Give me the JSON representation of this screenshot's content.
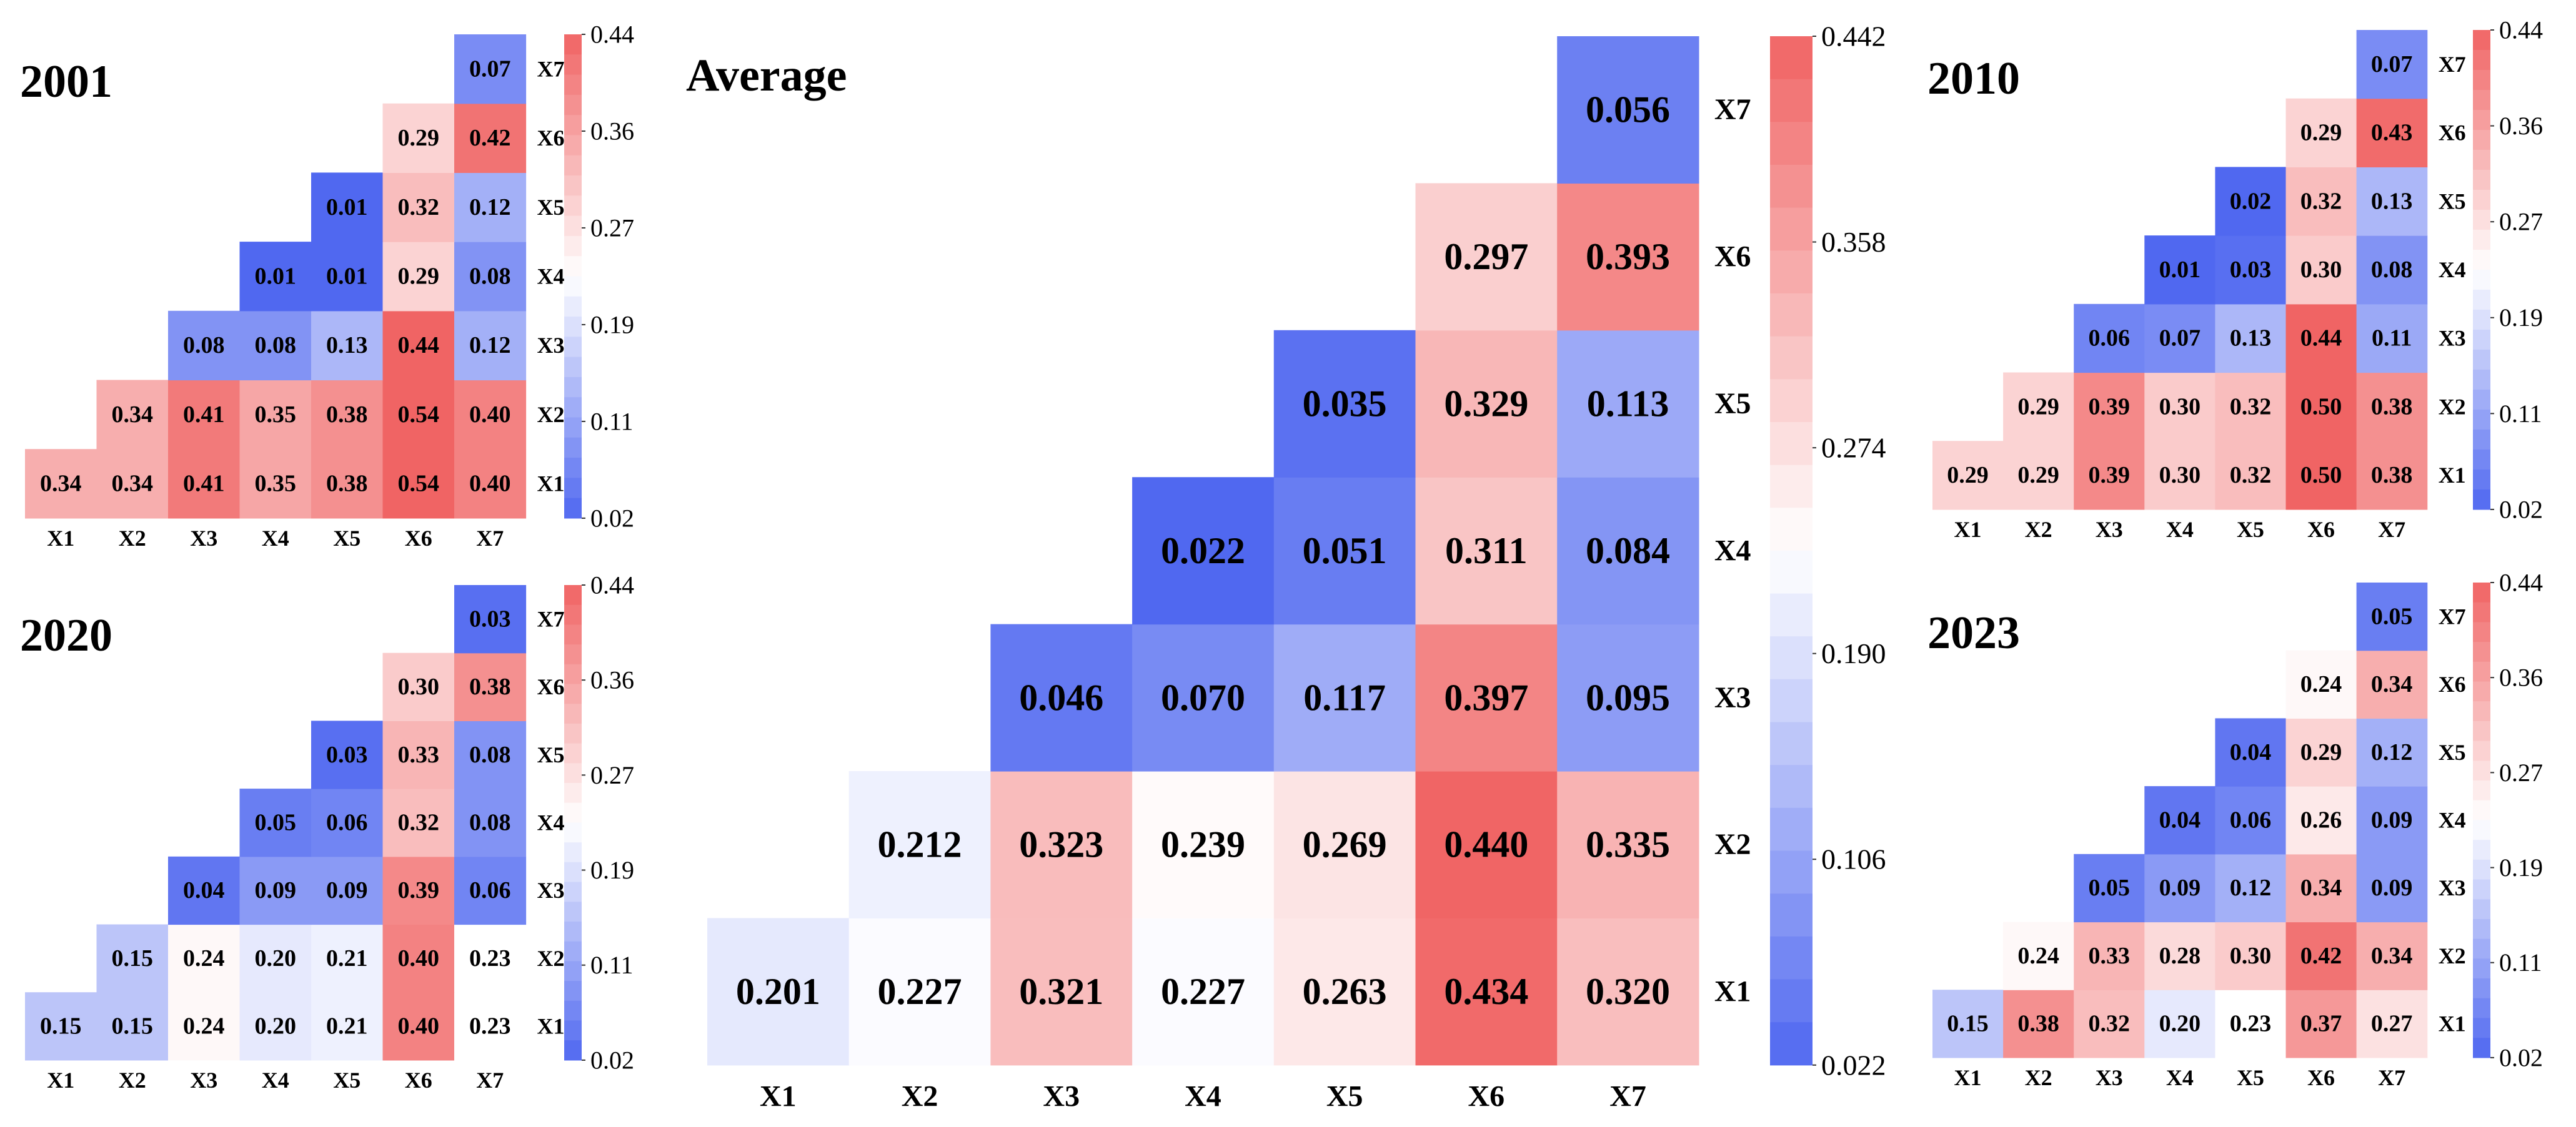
{
  "colors": {
    "low": "#5068f0",
    "mid": "#ffffff",
    "high": "#f06464",
    "text": "#000000"
  },
  "chart_data": [
    {
      "type": "heatmap",
      "title": "2001",
      "xlabels": [
        "X1",
        "X2",
        "X3",
        "X4",
        "X5",
        "X6",
        "X7"
      ],
      "ylabels": [
        "X1",
        "X2",
        "X3",
        "X4",
        "X5",
        "X6",
        "X7"
      ],
      "values": [
        [
          "0.34",
          "0.34",
          "0.41",
          "0.35",
          "0.38",
          "0.54",
          "0.40"
        ],
        [
          "",
          "0.34",
          "0.41",
          "0.35",
          "0.38",
          "0.54",
          "0.40"
        ],
        [
          "",
          "",
          "0.08",
          "0.08",
          "0.13",
          "0.44",
          "0.12"
        ],
        [
          "",
          "",
          "",
          "0.01",
          "0.01",
          "0.29",
          "0.08"
        ],
        [
          "",
          "",
          "",
          "",
          "0.01",
          "0.32",
          "0.12"
        ],
        [
          "",
          "",
          "",
          "",
          "",
          "0.29",
          "0.42"
        ],
        [
          "",
          "",
          "",
          "",
          "",
          "",
          "0.07"
        ]
      ],
      "colorbar": {
        "min": 0.02,
        "max": 0.44,
        "ticks": [
          "0.44",
          "0.36",
          "0.27",
          "0.19",
          "0.11",
          "0.02"
        ]
      }
    },
    {
      "type": "heatmap",
      "title": "2020",
      "xlabels": [
        "X1",
        "X2",
        "X3",
        "X4",
        "X5",
        "X6",
        "X7"
      ],
      "ylabels": [
        "X1",
        "X2",
        "X3",
        "X4",
        "X5",
        "X6",
        "X7"
      ],
      "values": [
        [
          "0.15",
          "0.15",
          "0.24",
          "0.20",
          "0.21",
          "0.40",
          "0.23"
        ],
        [
          "",
          "0.15",
          "0.24",
          "0.20",
          "0.21",
          "0.40",
          "0.23"
        ],
        [
          "",
          "",
          "0.04",
          "0.09",
          "0.09",
          "0.39",
          "0.06"
        ],
        [
          "",
          "",
          "",
          "0.05",
          "0.06",
          "0.32",
          "0.08"
        ],
        [
          "",
          "",
          "",
          "",
          "0.03",
          "0.33",
          "0.08"
        ],
        [
          "",
          "",
          "",
          "",
          "",
          "0.30",
          "0.38"
        ],
        [
          "",
          "",
          "",
          "",
          "",
          "",
          "0.03"
        ]
      ],
      "colorbar": {
        "min": 0.02,
        "max": 0.44,
        "ticks": [
          "0.44",
          "0.36",
          "0.27",
          "0.19",
          "0.11",
          "0.02"
        ]
      }
    },
    {
      "type": "heatmap",
      "title": "Average",
      "xlabels": [
        "X1",
        "X2",
        "X3",
        "X4",
        "X5",
        "X6",
        "X7"
      ],
      "ylabels": [
        "X1",
        "X2",
        "X3",
        "X4",
        "X5",
        "X6",
        "X7"
      ],
      "values": [
        [
          "0.201",
          "0.227",
          "0.321",
          "0.227",
          "0.263",
          "0.434",
          "0.320"
        ],
        [
          "",
          "0.212",
          "0.323",
          "0.239",
          "0.269",
          "0.440",
          "0.335"
        ],
        [
          "",
          "",
          "0.046",
          "0.070",
          "0.117",
          "0.397",
          "0.095"
        ],
        [
          "",
          "",
          "",
          "0.022",
          "0.051",
          "0.311",
          "0.084"
        ],
        [
          "",
          "",
          "",
          "",
          "0.035",
          "0.329",
          "0.113"
        ],
        [
          "",
          "",
          "",
          "",
          "",
          "0.297",
          "0.393"
        ],
        [
          "",
          "",
          "",
          "",
          "",
          "",
          "0.056"
        ]
      ],
      "colorbar": {
        "min": 0.022,
        "max": 0.442,
        "ticks": [
          "0.442",
          "0.358",
          "0.274",
          "0.190",
          "0.106",
          "0.022"
        ]
      }
    },
    {
      "type": "heatmap",
      "title": "2010",
      "xlabels": [
        "X1",
        "X2",
        "X3",
        "X4",
        "X5",
        "X6",
        "X7"
      ],
      "ylabels": [
        "X1",
        "X2",
        "X3",
        "X4",
        "X5",
        "X6",
        "X7"
      ],
      "values": [
        [
          "0.29",
          "0.29",
          "0.39",
          "0.30",
          "0.32",
          "0.50",
          "0.38"
        ],
        [
          "",
          "0.29",
          "0.39",
          "0.30",
          "0.32",
          "0.50",
          "0.38"
        ],
        [
          "",
          "",
          "0.06",
          "0.07",
          "0.13",
          "0.44",
          "0.11"
        ],
        [
          "",
          "",
          "",
          "0.01",
          "0.03",
          "0.30",
          "0.08"
        ],
        [
          "",
          "",
          "",
          "",
          "0.02",
          "0.32",
          "0.13"
        ],
        [
          "",
          "",
          "",
          "",
          "",
          "0.29",
          "0.43"
        ],
        [
          "",
          "",
          "",
          "",
          "",
          "",
          "0.07"
        ]
      ],
      "colorbar": {
        "min": 0.02,
        "max": 0.44,
        "ticks": [
          "0.44",
          "0.36",
          "0.27",
          "0.19",
          "0.11",
          "0.02"
        ]
      }
    },
    {
      "type": "heatmap",
      "title": "2023",
      "xlabels": [
        "X1",
        "X2",
        "X3",
        "X4",
        "X5",
        "X6",
        "X7"
      ],
      "ylabels": [
        "X1",
        "X2",
        "X3",
        "X4",
        "X5",
        "X6",
        "X7"
      ],
      "values": [
        [
          "0.15",
          "0.38",
          "0.32",
          "0.20",
          "0.23",
          "0.37",
          "0.27"
        ],
        [
          "",
          "0.24",
          "0.33",
          "0.28",
          "0.30",
          "0.42",
          "0.34"
        ],
        [
          "",
          "",
          "0.05",
          "0.09",
          "0.12",
          "0.34",
          "0.09"
        ],
        [
          "",
          "",
          "",
          "0.04",
          "0.06",
          "0.26",
          "0.09"
        ],
        [
          "",
          "",
          "",
          "",
          "0.04",
          "0.29",
          "0.12"
        ],
        [
          "",
          "",
          "",
          "",
          "",
          "0.24",
          "0.34"
        ],
        [
          "",
          "",
          "",
          "",
          "",
          "",
          "0.05"
        ]
      ],
      "colorbar": {
        "min": 0.02,
        "max": 0.44,
        "ticks": [
          "0.44",
          "0.36",
          "0.27",
          "0.19",
          "0.11",
          "0.02"
        ]
      }
    }
  ]
}
